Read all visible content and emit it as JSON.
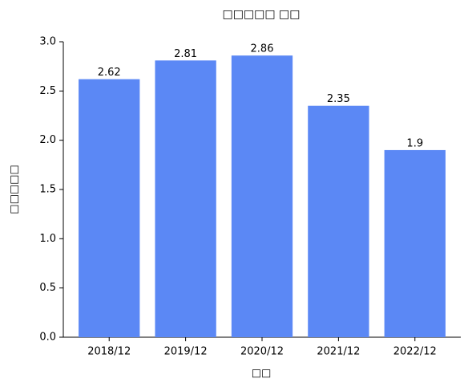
{
  "chart_data": {
    "type": "bar",
    "title": "□□□□□ □□",
    "x_label": "□□",
    "y_label": "□□□□□",
    "categories": [
      "2018/12",
      "2019/12",
      "2020/12",
      "2021/12",
      "2022/12"
    ],
    "values": [
      2.62,
      2.81,
      2.86,
      2.35,
      1.9
    ],
    "color": "#5b88f5",
    "ylim": [
      0,
      3
    ],
    "yticks": [
      {
        "value": 0,
        "label": "0.0"
      },
      {
        "value": 0.5,
        "label": "0.5"
      },
      {
        "value": 1,
        "label": "1.0"
      },
      {
        "value": 1.5,
        "label": "1.5"
      },
      {
        "value": 2,
        "label": "2.0"
      },
      {
        "value": 2.5,
        "label": "2.5"
      },
      {
        "value": 3,
        "label": "3.0"
      }
    ],
    "grid": false
  }
}
